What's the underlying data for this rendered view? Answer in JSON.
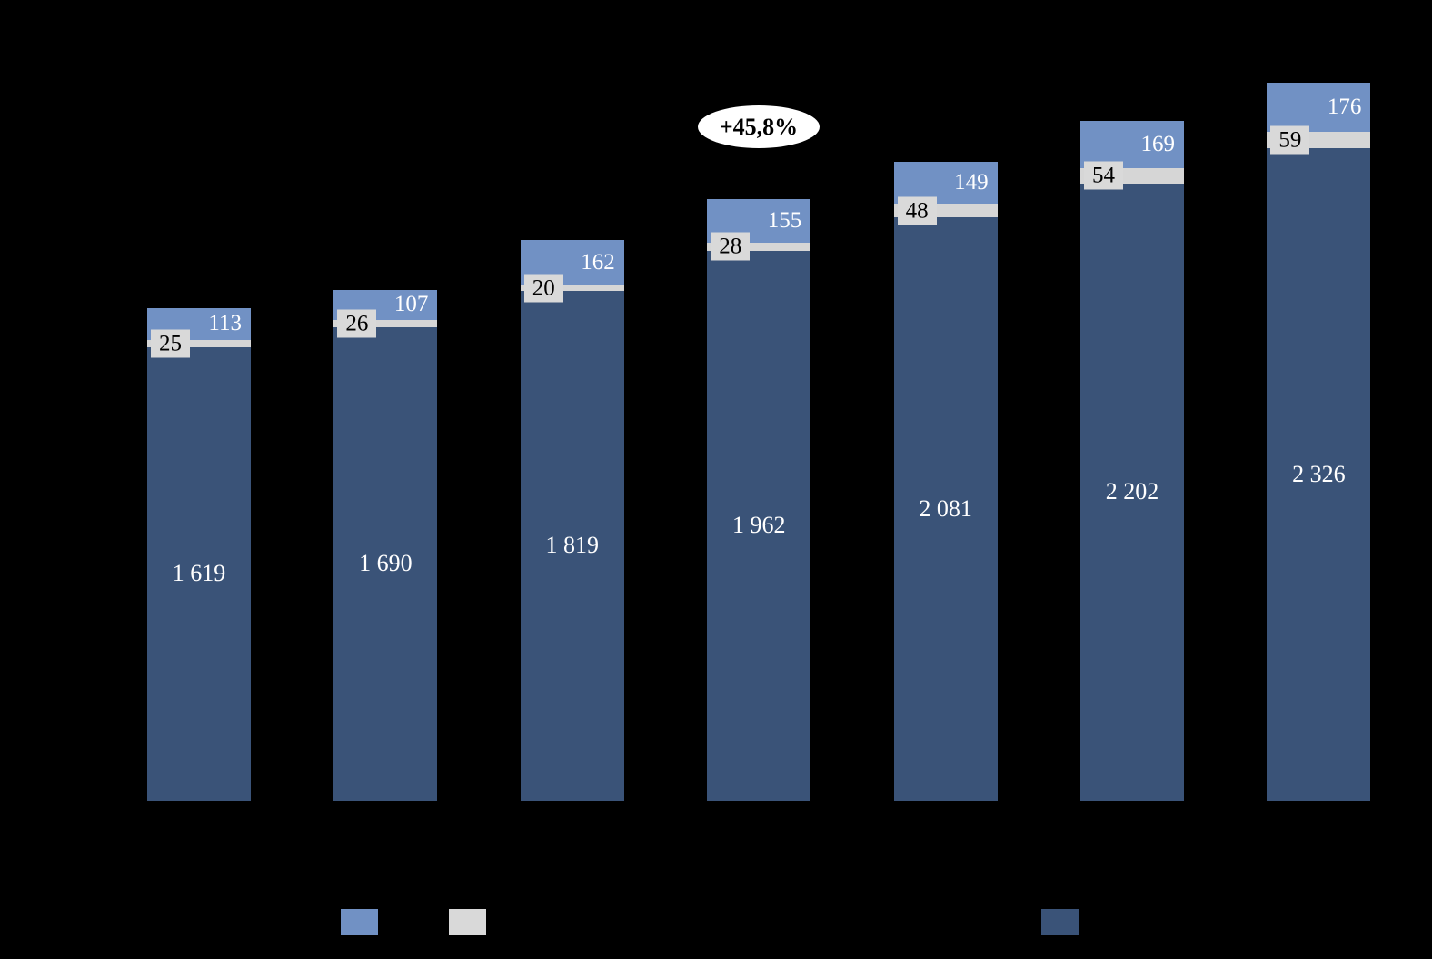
{
  "chart_data": {
    "type": "bar",
    "stacked": true,
    "background": "#000000",
    "annotation": "+45,8%",
    "series": [
      {
        "name": "dark-blue-segment",
        "color": "#3A5378",
        "values": [
          1619,
          1690,
          1819,
          1962,
          2081,
          2202,
          2326
        ],
        "labels": [
          "1 619",
          "1 690",
          "1 819",
          "1 962",
          "2 081",
          "2 202",
          "2 326"
        ]
      },
      {
        "name": "gray-segment",
        "color": "#D6D6D6",
        "values": [
          25,
          26,
          20,
          28,
          48,
          54,
          59
        ],
        "labels": [
          "25",
          "26",
          "20",
          "28",
          "48",
          "54",
          "59"
        ]
      },
      {
        "name": "light-blue-segment",
        "color": "#7191C4",
        "values": [
          113,
          107,
          162,
          155,
          149,
          169,
          176
        ],
        "labels": [
          "113",
          "107",
          "162",
          "155",
          "149",
          "169",
          "176"
        ]
      }
    ],
    "legend": {
      "position": "bottom",
      "swatches": [
        {
          "name": "light-blue-swatch",
          "color": "#7191C4"
        },
        {
          "name": "gray-swatch",
          "color": "#D9D9D9"
        },
        {
          "name": "dark-blue-swatch",
          "color": "#3A5378"
        }
      ]
    }
  }
}
